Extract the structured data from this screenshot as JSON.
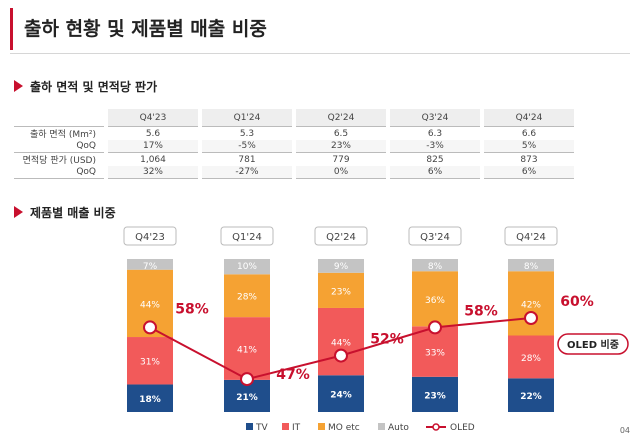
{
  "page": {
    "title": "출하 현황 및 제품별 매출 비중",
    "page_number": "04"
  },
  "section1": {
    "title": "출하 면적 및 면적당 판가"
  },
  "section2": {
    "title": "제품별 매출 비중"
  },
  "table": {
    "columns": [
      "Q4'23",
      "Q1'24",
      "Q2'24",
      "Q3'24",
      "Q4'24"
    ],
    "rows": [
      {
        "label": "출하 면적 (Mm²)",
        "values": [
          "5.6",
          "5.3",
          "6.5",
          "6.3",
          "6.6"
        ],
        "kind": "main"
      },
      {
        "label": "QoQ",
        "values": [
          "17%",
          "-5%",
          "23%",
          "-3%",
          "5%"
        ],
        "kind": "sub"
      },
      {
        "label": "면적당 판가 (USD)",
        "values": [
          "1,064",
          "781",
          "779",
          "825",
          "873"
        ],
        "kind": "main"
      },
      {
        "label": "QoQ",
        "values": [
          "32%",
          "-27%",
          "0%",
          "6%",
          "6%"
        ],
        "kind": "sub"
      }
    ]
  },
  "chart_data": {
    "type": "bar",
    "stacked": true,
    "categories": [
      "Q4'23",
      "Q1'24",
      "Q2'24",
      "Q3'24",
      "Q4'24"
    ],
    "series": [
      {
        "name": "TV",
        "values": [
          18,
          21,
          24,
          23,
          22
        ],
        "labels": [
          "18%",
          "21%",
          "24%",
          "23%",
          "22%"
        ],
        "color": "#1f4e8c"
      },
      {
        "name": "IT",
        "values": [
          31,
          41,
          44,
          33,
          28
        ],
        "labels": [
          "31%",
          "41%",
          "44%",
          "33%",
          "28%"
        ],
        "color": "#f25a5a"
      },
      {
        "name": "MO etc",
        "values": [
          44,
          28,
          23,
          36,
          42
        ],
        "labels": [
          "44%",
          "28%",
          "23%",
          "36%",
          "42%"
        ],
        "color": "#f5a233"
      },
      {
        "name": "Auto",
        "values": [
          7,
          10,
          9,
          8,
          8
        ],
        "labels": [
          "7%",
          "10%",
          "9%",
          "8%",
          "8%"
        ],
        "color": "#c4c4c4"
      }
    ],
    "line": {
      "name": "OLED",
      "values": [
        58,
        47,
        52,
        58,
        60
      ],
      "labels": [
        "58%",
        "47%",
        "52%",
        "58%",
        "60%"
      ],
      "color": "#c8102e"
    },
    "callout": "OLED 비중",
    "legend_position": "bottom",
    "ylim": [
      0,
      100
    ]
  }
}
